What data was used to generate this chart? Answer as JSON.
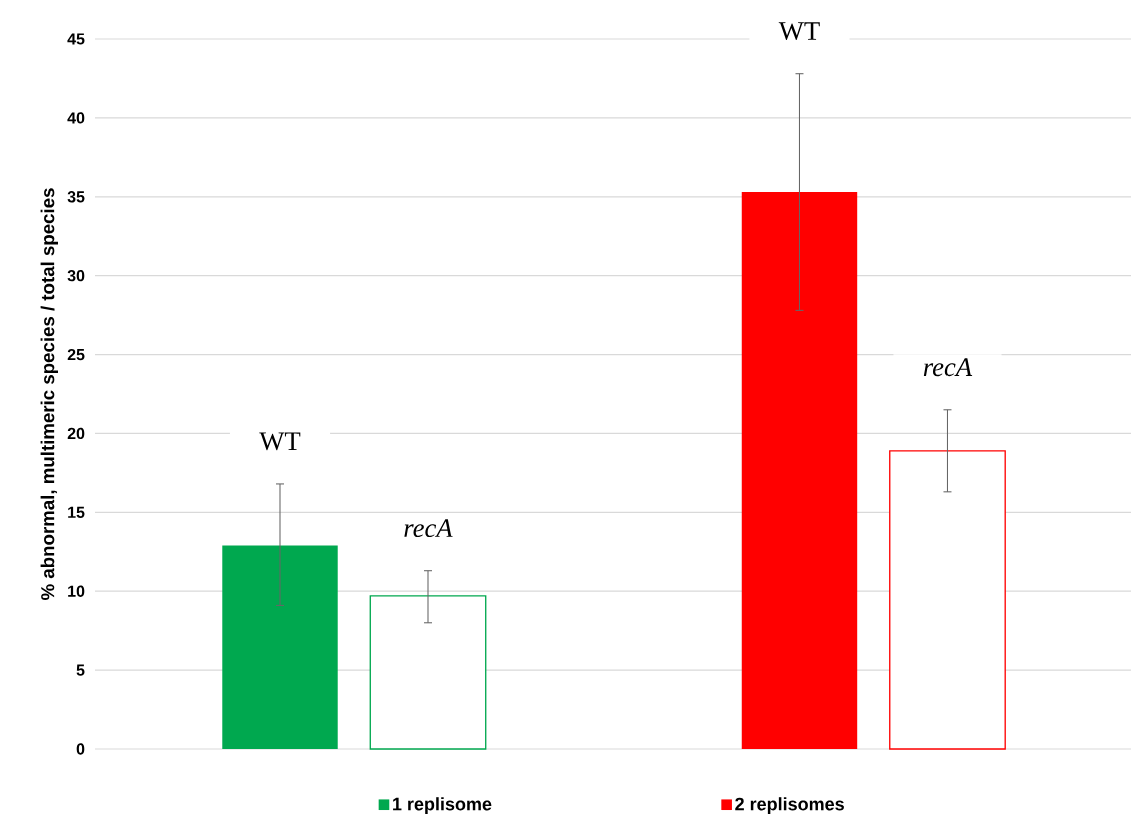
{
  "chart_data": {
    "type": "bar",
    "ylabel": "% abnormal, multimeric species / total species",
    "categories": [
      null,
      null,
      null,
      null
    ],
    "series": [
      {
        "name": "1 replisome",
        "color": "#00a84f",
        "values": [
          12.9,
          9.7,
          null,
          null
        ],
        "errors": [
          [
            9.1,
            16.8
          ],
          [
            8.0,
            11.3
          ],
          null,
          null
        ]
      },
      {
        "name": "2 replisomes",
        "color": "#ff0000",
        "values": [
          null,
          null,
          35.3,
          18.9
        ],
        "errors": [
          null,
          null,
          [
            27.8,
            42.8
          ],
          [
            16.3,
            21.5
          ]
        ]
      }
    ],
    "annotations": [
      "WT",
      "*recA*",
      "WT",
      "*recA*"
    ],
    "ylim": [
      0,
      45
    ],
    "yticks": [
      0,
      5,
      10,
      15,
      20,
      25,
      30,
      35,
      40,
      45
    ],
    "grid": "y",
    "legend": "bottom"
  }
}
